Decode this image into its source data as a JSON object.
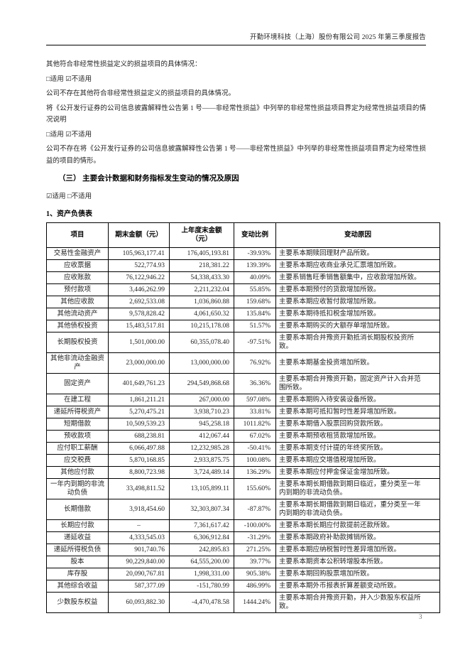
{
  "header": {
    "title": "开勤环境科技（上海）股份有限公司 2025 年第三季度报告"
  },
  "paragraphs": {
    "p1": "其他符合非经常性损益定义的损益项目的具体情况：",
    "check1": "□适用 ☑不适用",
    "p2": "公司不存在其他符合非经常性损益定义的损益项目的具体情况。",
    "p3": "将《公开发行证券的公司信息披露解释性公告第 1 号——非经常性损益》中列举的非经常性损益项目界定为经常性损益项目的情况说明",
    "check2": "□适用 ☑不适用",
    "p4": "公司不存在将《公开发行证券的公司信息披露解释性公告第 1 号——非经常性损益》中列举的非经常性损益项目界定为经常性损益的项目的情形。"
  },
  "section": {
    "heading": "（三）  主要会计数据和财务指标发生变动的情况及原因",
    "check": "☑适用 □不适用",
    "subheading": "1、资产负债表"
  },
  "table": {
    "headers": [
      "项目",
      "期末金额（元）",
      "上年度末金额\n（元）",
      "变动比例",
      "变动原因"
    ],
    "rows": [
      {
        "item": "交易性金融资产",
        "current": "105,963,177.41",
        "prev": "176,405,193.81",
        "ratio": "-39.93%",
        "reason": "主要系本期赎回理财产品所致。"
      },
      {
        "item": "应收票据",
        "current": "522,774.93",
        "prev": "218,381.22",
        "ratio": "139.39%",
        "reason": "主要系本期应收商业承兑汇票增加所致。"
      },
      {
        "item": "应收账款",
        "current": "76,122,946.22",
        "prev": "54,338,433.30",
        "ratio": "40.09%",
        "reason": "主要系销售旺季销售额集中，应收款增加所致。"
      },
      {
        "item": "预付款项",
        "current": "3,446,262.99",
        "prev": "2,211,232.04",
        "ratio": "55.85%",
        "reason": "主要系本期预付的货款增加所致。"
      },
      {
        "item": "其他应收款",
        "current": "2,692,533.08",
        "prev": "1,036,860.88",
        "ratio": "159.68%",
        "reason": "主要系本期应收暂付款增加所致。"
      },
      {
        "item": "其他流动资产",
        "current": "9,578,828.42",
        "prev": "4,061,650.32",
        "ratio": "135.84%",
        "reason": "主要系本期待抵扣税金增加所致。"
      },
      {
        "item": "其他债权投资",
        "current": "15,483,517.81",
        "prev": "10,215,178.08",
        "ratio": "51.57%",
        "reason": "主要系本期购买的大额存单增加所致。"
      },
      {
        "item": "长期股权投资",
        "current": "1,501,000.00",
        "prev": "60,355,078.40",
        "ratio": "-97.51%",
        "reason": "主要系本期合并豫资开勤抵消长期股权投资所致。"
      },
      {
        "item": "其他非流动金融资产",
        "current": "23,000,000.00",
        "prev": "13,000,000.00",
        "ratio": "76.92%",
        "reason": "主要系本期基金投资增加所致。"
      },
      {
        "item": "固定资产",
        "current": "401,649,761.23",
        "prev": "294,549,868.68",
        "ratio": "36.36%",
        "reason": "主要系本期合并豫资开勤，固定资产计入合并范围所致。"
      },
      {
        "item": "在建工程",
        "current": "1,861,211.21",
        "prev": "267,000.00",
        "ratio": "597.08%",
        "reason": "主要系本期购入待安装设备所致。"
      },
      {
        "item": "递延所得税资产",
        "current": "5,270,475.21",
        "prev": "3,938,710.23",
        "ratio": "33.81%",
        "reason": "主要系本期可抵扣暂时性差异增加所致。"
      },
      {
        "item": "短期借款",
        "current": "10,509,539.23",
        "prev": "945,258.18",
        "ratio": "1011.82%",
        "reason": "主要系本期借入股票回购贷款所致。"
      },
      {
        "item": "预收款项",
        "current": "688,238.81",
        "prev": "412,067.44",
        "ratio": "67.02%",
        "reason": "主要系本期预收租赁款增加所致。"
      },
      {
        "item": "应付职工薪酬",
        "current": "6,066,497.88",
        "prev": "12,232,985.28",
        "ratio": "-50.41%",
        "reason": "主要系本期支付计提的年终奖所致。"
      },
      {
        "item": "应交税费",
        "current": "5,870,168.85",
        "prev": "2,933,875.75",
        "ratio": "100.08%",
        "reason": "主要系本期应交增值税增加所致。"
      },
      {
        "item": "其他应付款",
        "current": "8,800,723.98",
        "prev": "3,724,489.14",
        "ratio": "136.29%",
        "reason": "主要系本期应付押金保证金增加所致。"
      },
      {
        "item": "一年内到期的非流动负债",
        "current": "33,498,811.52",
        "prev": "13,105,899.11",
        "ratio": "155.60%",
        "reason": "主要系本期长期借款到期日临近，重分类至一年内到期的非流动负债。"
      },
      {
        "item": "长期借款",
        "current": "3,918,454.60",
        "prev": "32,303,807.34",
        "ratio": "-87.87%",
        "reason": "主要系本期长期借款到期日临近，重分类至一年内到期的非流动负债。"
      },
      {
        "item": "长期应付款",
        "current": "–",
        "prev": "7,361,617.42",
        "ratio": "-100.00%",
        "reason": "主要系本期长期应付款提前还款所致。"
      },
      {
        "item": "递延收益",
        "current": "4,333,545.03",
        "prev": "6,306,912.84",
        "ratio": "-31.29%",
        "reason": "主要系本期政府补助款摊销所致。"
      },
      {
        "item": "递延所得税负债",
        "current": "901,740.76",
        "prev": "242,895.83",
        "ratio": "271.25%",
        "reason": "主要系本期应纳税暂时性差异增加所致。"
      },
      {
        "item": "股本",
        "current": "90,229,840.00",
        "prev": "64,555,200.00",
        "ratio": "39.77%",
        "reason": "主要系本期资本公积转增股本所致。"
      },
      {
        "item": "库存股",
        "current": "20,090,767.81",
        "prev": "1,998,331.00",
        "ratio": "905.38%",
        "reason": "主要系本期回购股票增加所致。"
      },
      {
        "item": "其他综合收益",
        "current": "587,377.09",
        "prev": "-151,780.99",
        "ratio": "486.99%",
        "reason": "主要系本期外币报表折算差额变动所致。"
      },
      {
        "item": "少数股东权益",
        "current": "60,093,882.30",
        "prev": "-4,470,478.58",
        "ratio": "1444.24%",
        "reason": "主要系本期合并豫资开勤，并入少数股东权益所致。"
      }
    ]
  },
  "footer": {
    "page_number": "3"
  }
}
